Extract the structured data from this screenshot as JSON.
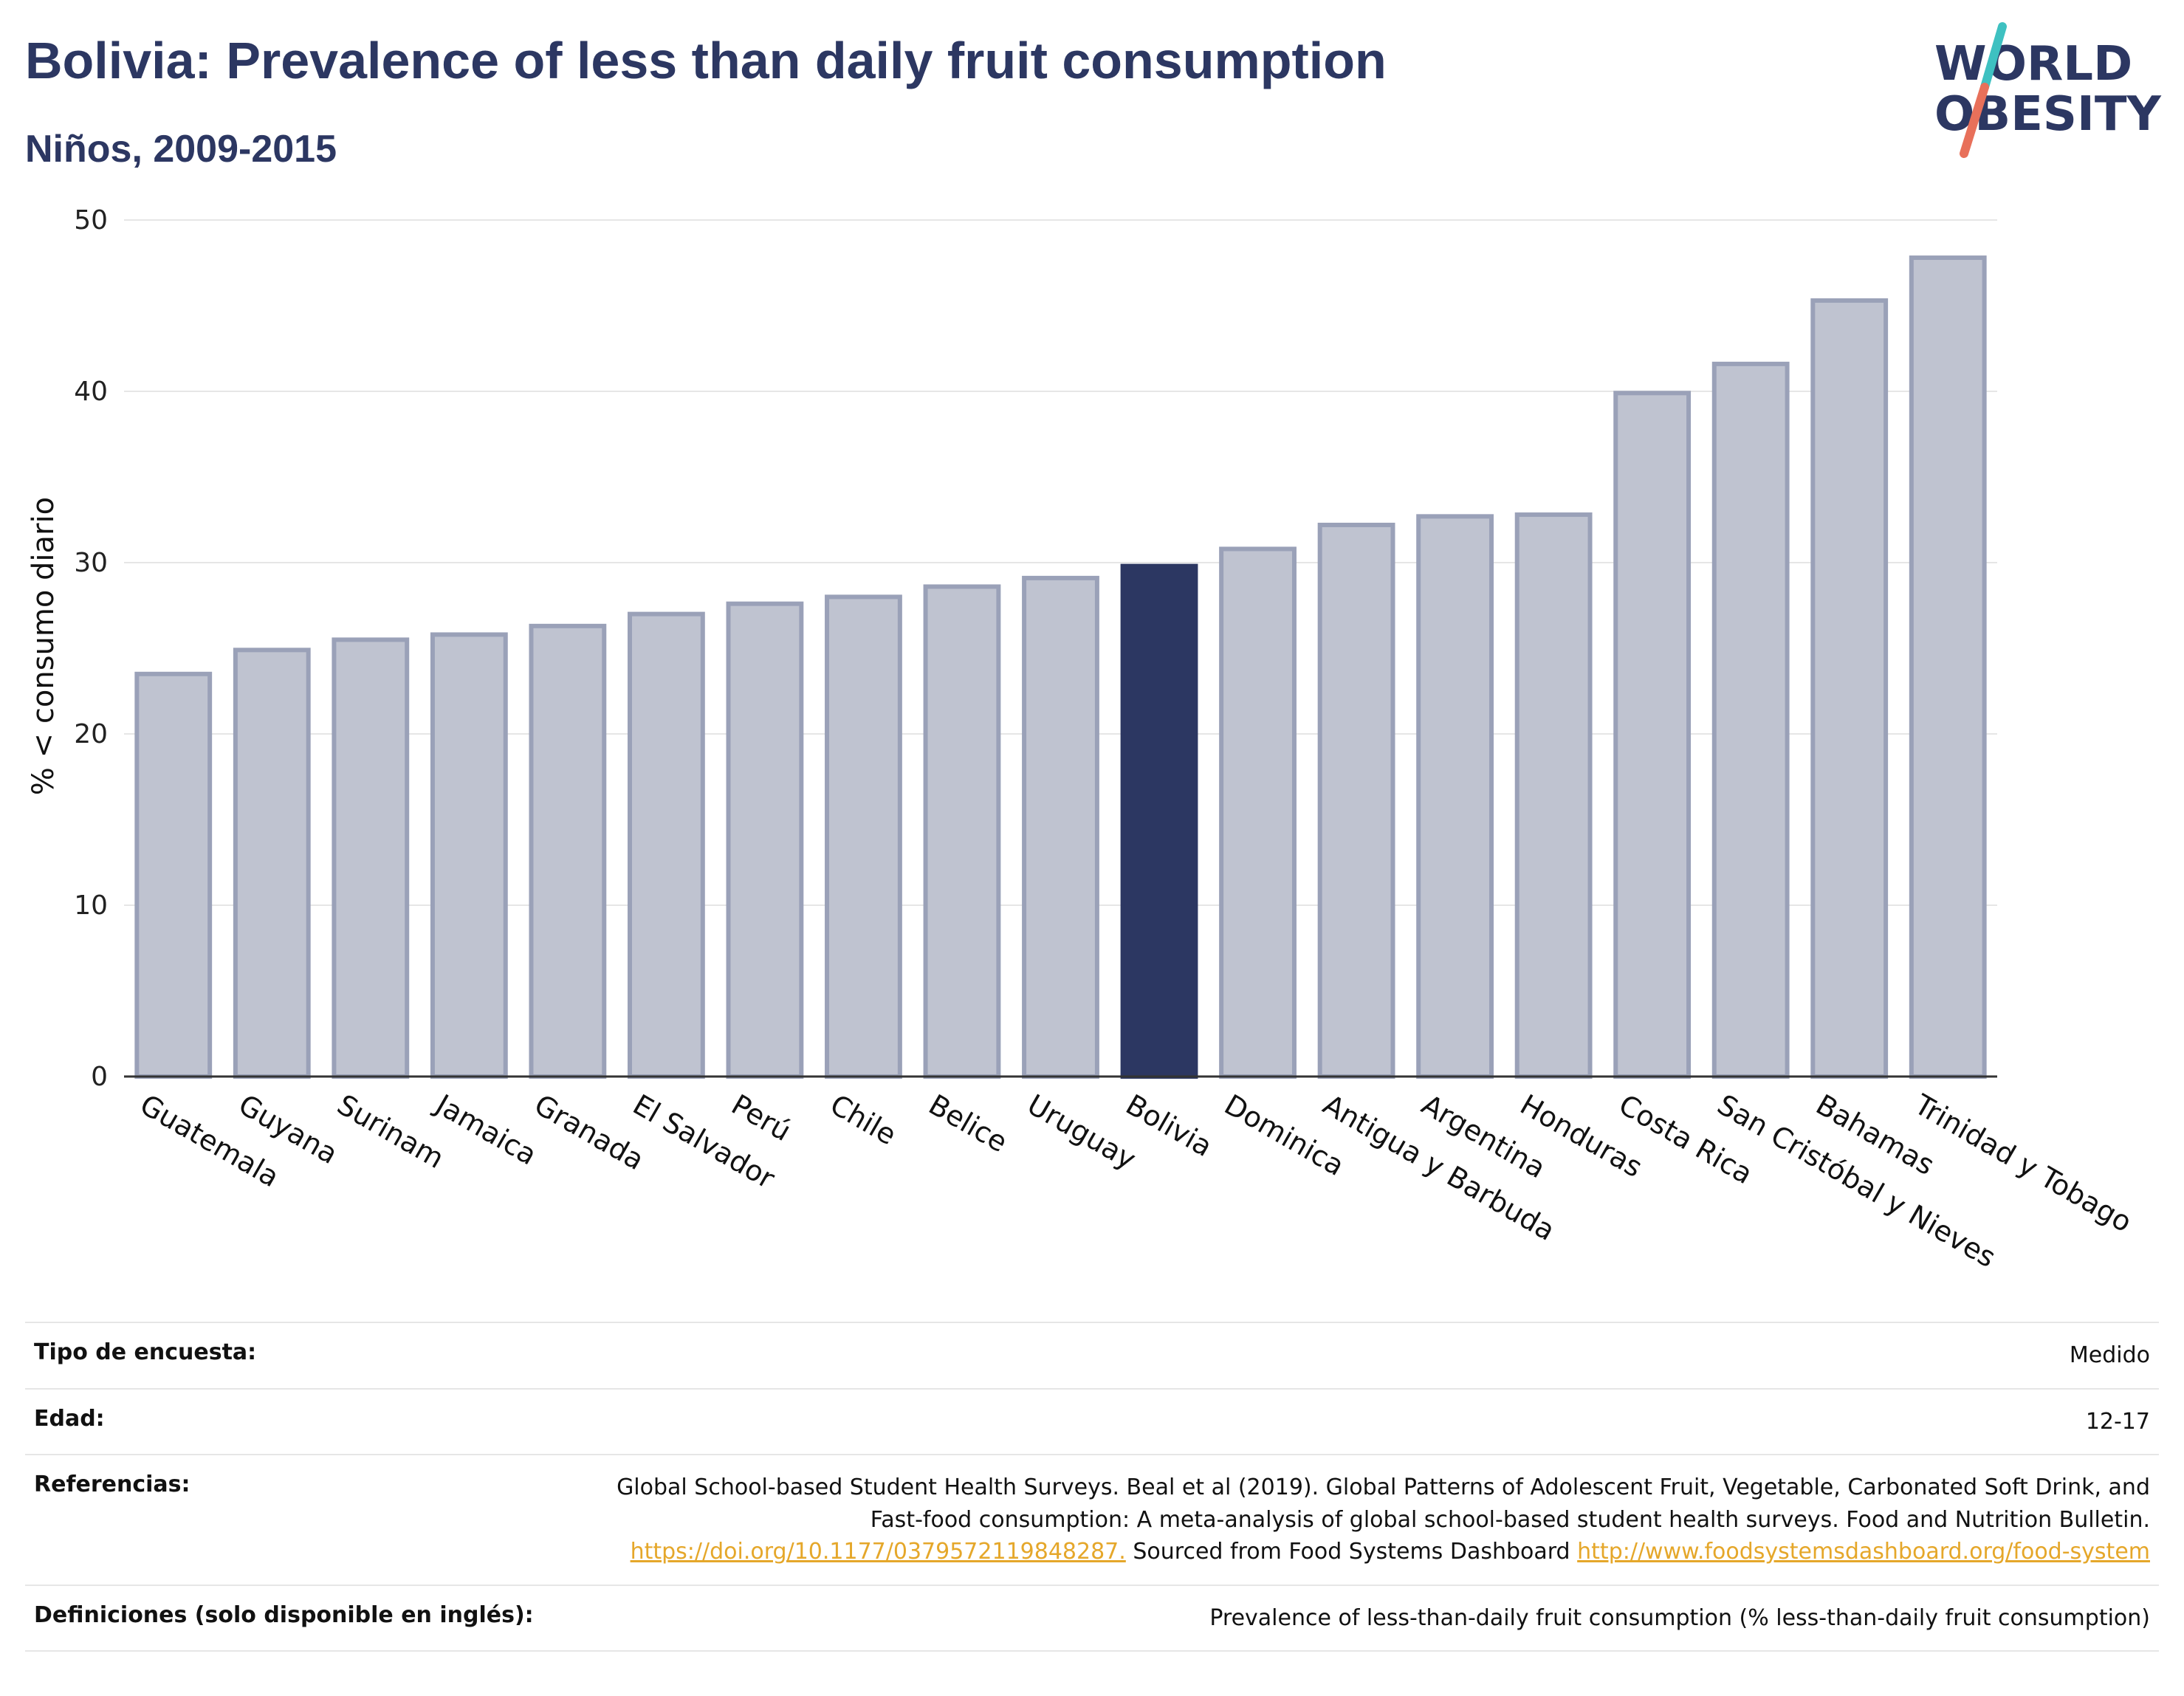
{
  "header": {
    "title": "Bolivia: Prevalence of less than daily fruit consumption",
    "subtitle": "Niños, 2009-2015"
  },
  "logo": {
    "line1": "WORLD",
    "line2": "OBESITY",
    "slash_colors": [
      "#3ec1c1",
      "#e8705a"
    ]
  },
  "colors": {
    "highlight": "#2c3762",
    "bar": "#bfc3d0",
    "bar_edge": "#9aa1b8",
    "accent": "#e5a72a"
  },
  "chart_data": {
    "type": "bar",
    "title": "Bolivia: Prevalence of less than daily fruit consumption",
    "subtitle": "Niños, 2009-2015",
    "xlabel": "",
    "ylabel": "% < consumo diario",
    "ylim": [
      0,
      50
    ],
    "yticks": [
      0,
      10,
      20,
      30,
      40,
      50
    ],
    "grid": true,
    "highlight": "Bolivia",
    "categories": [
      "Guatemala",
      "Guyana",
      "Surinam",
      "Jamaica",
      "Granada",
      "El Salvador",
      "Perú",
      "Chile",
      "Belice",
      "Uruguay",
      "Bolivia",
      "Dominica",
      "Antigua y Barbuda",
      "Argentina",
      "Honduras",
      "Costa Rica",
      "San Cristóbal y Nieves",
      "Bahamas",
      "Trinidad y Tobago"
    ],
    "values": [
      23.5,
      24.9,
      25.5,
      25.8,
      26.3,
      27.0,
      27.6,
      28.0,
      28.6,
      29.1,
      29.8,
      30.8,
      32.2,
      32.7,
      32.8,
      39.9,
      41.6,
      45.3,
      47.8
    ]
  },
  "info": {
    "survey_label": "Tipo de encuesta:",
    "survey_value": "Medido",
    "age_label": "Edad:",
    "age_value": "12-17",
    "refs_label": "Referencias:",
    "refs_text1": "Global School-based Student Health Surveys. Beal et al (2019). Global Patterns of Adolescent Fruit, Vegetable, Carbonated Soft Drink, and Fast-food consumption: A meta-analysis of global school-based student health surveys. Food and Nutrition Bulletin.",
    "refs_link1": "https://doi.org/10.1177/0379572119848287.",
    "refs_text2": "Sourced from Food Systems Dashboard",
    "refs_link2": "http://www.foodsystemsdashboard.org/food-system",
    "defs_label": "Definiciones (solo disponible en inglés):",
    "defs_value": "Prevalence of less-than-daily fruit consumption (% less-than-daily fruit consumption)"
  }
}
